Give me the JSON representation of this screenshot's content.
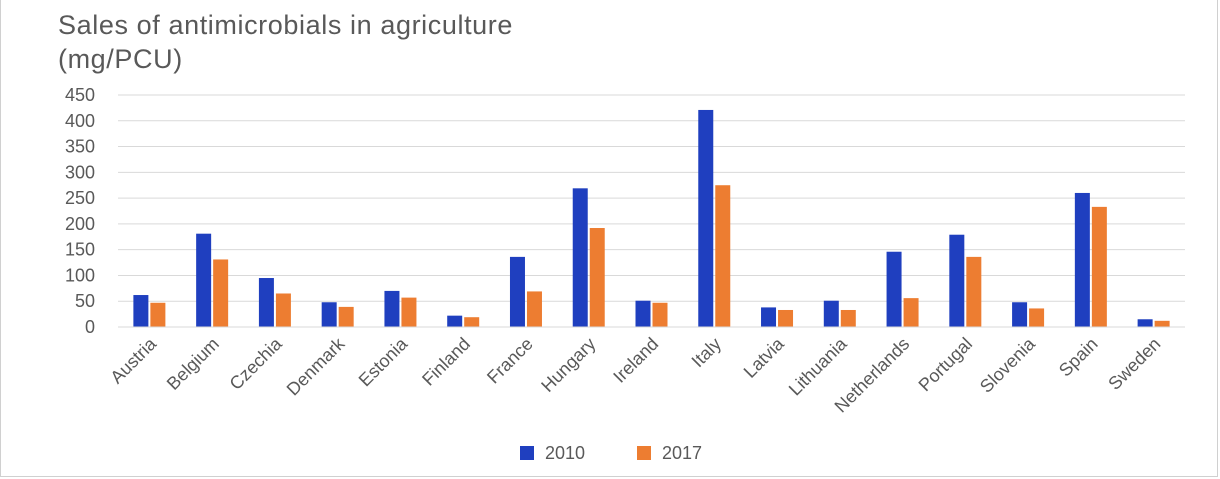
{
  "chart_data": {
    "type": "bar",
    "title_lines": [
      "Sales of antimicrobials in agriculture",
      "(mg/PCU)"
    ],
    "categories": [
      "Austria",
      "Belgium",
      "Czechia",
      "Denmark",
      "Estonia",
      "Finland",
      "France",
      "Hungary",
      "Ireland",
      "Italy",
      "Latvia",
      "Lithuania",
      "Netherlands",
      "Portugal",
      "Slovenia",
      "Spain",
      "Sweden"
    ],
    "series": [
      {
        "name": "2010",
        "color": "#1f3fbf",
        "values": [
          62,
          181,
          95,
          48,
          70,
          22,
          136,
          269,
          51,
          421,
          38,
          51,
          146,
          179,
          48,
          260,
          15
        ]
      },
      {
        "name": "2017",
        "color": "#ed7d31",
        "values": [
          47,
          131,
          65,
          39,
          57,
          19,
          69,
          192,
          47,
          275,
          33,
          33,
          56,
          136,
          36,
          233,
          12
        ]
      }
    ],
    "yticks": [
      "0",
      "50",
      "100",
      "150",
      "200",
      "250",
      "300",
      "350",
      "400",
      "450"
    ],
    "ylim": [
      0,
      450
    ],
    "grid": true,
    "legend_position": "bottom-center"
  }
}
